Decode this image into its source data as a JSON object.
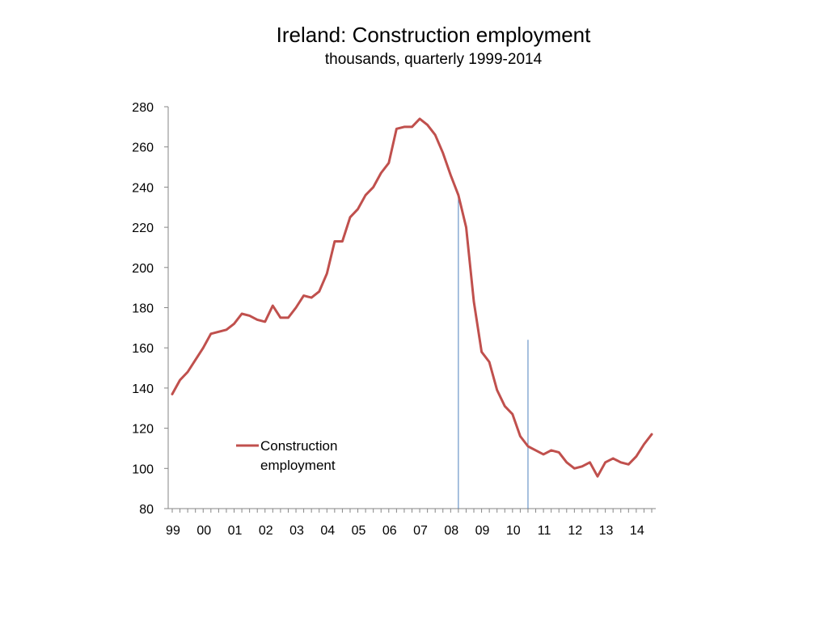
{
  "chart_data": {
    "type": "line",
    "title": "Ireland: Construction employment",
    "subtitle": "thousands, quarterly 1999-2014",
    "xlabel": "",
    "ylabel": "",
    "ylim": [
      80,
      280
    ],
    "y_ticks": [
      80,
      100,
      120,
      140,
      160,
      180,
      200,
      220,
      240,
      260,
      280
    ],
    "x_tick_labels": [
      "99",
      "00",
      "01",
      "02",
      "03",
      "04",
      "05",
      "06",
      "07",
      "08",
      "09",
      "10",
      "11",
      "12",
      "13",
      "14"
    ],
    "grid": false,
    "legend_position": "lower-left",
    "series": [
      {
        "name": "Construction employment",
        "color": "#c0504d",
        "values": [
          137,
          144,
          148,
          154,
          160,
          167,
          168,
          169,
          172,
          177,
          176,
          174,
          173,
          181,
          175,
          175,
          180,
          186,
          185,
          188,
          197,
          213,
          213,
          225,
          229,
          236,
          240,
          247,
          252,
          269,
          270,
          270,
          274,
          271,
          266,
          257,
          246,
          236,
          220,
          183,
          158,
          153,
          139,
          131,
          127,
          116,
          111,
          109,
          107,
          109,
          108,
          103,
          100,
          101,
          103,
          96,
          103,
          105,
          103,
          102,
          106,
          112,
          117
        ]
      }
    ],
    "marker_lines": [
      {
        "quarter": "2008Q2",
        "top_value": 237,
        "color": "#4f81bd"
      },
      {
        "quarter": "2010Q3",
        "top_value": 164,
        "color": "#4f81bd"
      }
    ]
  }
}
